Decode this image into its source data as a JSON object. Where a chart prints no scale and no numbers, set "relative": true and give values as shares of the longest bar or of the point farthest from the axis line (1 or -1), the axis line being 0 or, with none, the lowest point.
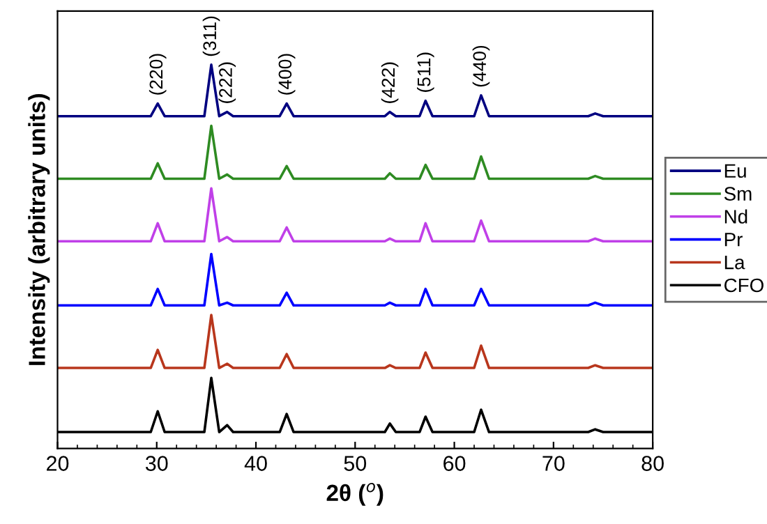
{
  "chart_data": {
    "type": "line",
    "relative": true,
    "xlabel": "2θ ($^{o}$)",
    "ylabel": "Intensity (arbitrary units)",
    "x": [
      20,
      29.4,
      30.1,
      30.8,
      34.8,
      35.5,
      36.3,
      37.1,
      37.7,
      42.4,
      43.1,
      43.8,
      53.0,
      53.5,
      54.1,
      56.5,
      57.1,
      57.8,
      62.0,
      62.7,
      63.5,
      73.5,
      74.2,
      75.0,
      80
    ],
    "xlim": [
      20,
      80
    ],
    "xticks": [
      20,
      30,
      40,
      50,
      60,
      70,
      80
    ],
    "legend": "right",
    "grid": false,
    "tick_labels": "x",
    "series": [
      {
        "name": "Eu",
        "color": "#000080",
        "values": [
          0.866,
          0.866,
          0.899,
          0.866,
          0.866,
          1.0,
          0.866,
          0.877,
          0.866,
          0.866,
          0.899,
          0.866,
          0.866,
          0.877,
          0.866,
          0.866,
          0.906,
          0.866,
          0.866,
          0.92,
          0.866,
          0.866,
          0.873,
          0.866,
          0.866
        ]
      },
      {
        "name": "Sm",
        "color": "#2e8b22",
        "values": [
          0.703,
          0.703,
          0.743,
          0.703,
          0.703,
          0.841,
          0.703,
          0.714,
          0.703,
          0.703,
          0.736,
          0.703,
          0.703,
          0.717,
          0.703,
          0.703,
          0.739,
          0.703,
          0.703,
          0.761,
          0.703,
          0.703,
          0.71,
          0.703,
          0.703
        ]
      },
      {
        "name": "Nd",
        "color": "#c040e8",
        "values": [
          0.54,
          0.54,
          0.587,
          0.54,
          0.54,
          0.678,
          0.54,
          0.551,
          0.54,
          0.54,
          0.576,
          0.54,
          0.54,
          0.547,
          0.54,
          0.54,
          0.587,
          0.54,
          0.54,
          0.594,
          0.54,
          0.54,
          0.547,
          0.54,
          0.54
        ]
      },
      {
        "name": "Pr",
        "color": "#0000ff",
        "values": [
          0.373,
          0.373,
          0.416,
          0.373,
          0.373,
          0.507,
          0.373,
          0.38,
          0.373,
          0.373,
          0.406,
          0.373,
          0.373,
          0.38,
          0.373,
          0.373,
          0.416,
          0.373,
          0.373,
          0.416,
          0.373,
          0.373,
          0.38,
          0.373,
          0.373
        ]
      },
      {
        "name": "La",
        "color": "#b8361c",
        "values": [
          0.21,
          0.21,
          0.257,
          0.21,
          0.21,
          0.348,
          0.21,
          0.221,
          0.21,
          0.21,
          0.246,
          0.21,
          0.21,
          0.217,
          0.21,
          0.21,
          0.25,
          0.21,
          0.21,
          0.268,
          0.21,
          0.21,
          0.217,
          0.21,
          0.21
        ]
      },
      {
        "name": "CFO",
        "color": "#000000",
        "values": [
          0.043,
          0.043,
          0.097,
          0.043,
          0.043,
          0.184,
          0.043,
          0.061,
          0.043,
          0.043,
          0.09,
          0.043,
          0.043,
          0.065,
          0.043,
          0.043,
          0.083,
          0.043,
          0.043,
          0.101,
          0.043,
          0.043,
          0.05,
          0.043,
          0.043
        ]
      }
    ],
    "annotations": [
      {
        "text": "(220)",
        "x": 30.1,
        "y": 0.899
      },
      {
        "text": "(311)",
        "x": 35.5,
        "y": 1.0
      },
      {
        "text": "(222)",
        "x": 37.1,
        "y": 0.877
      },
      {
        "text": "(400)",
        "x": 43.1,
        "y": 0.899
      },
      {
        "text": "(422)",
        "x": 53.5,
        "y": 0.877
      },
      {
        "text": "(511)",
        "x": 57.1,
        "y": 0.906
      },
      {
        "text": "(440)",
        "x": 62.7,
        "y": 0.92
      }
    ]
  }
}
